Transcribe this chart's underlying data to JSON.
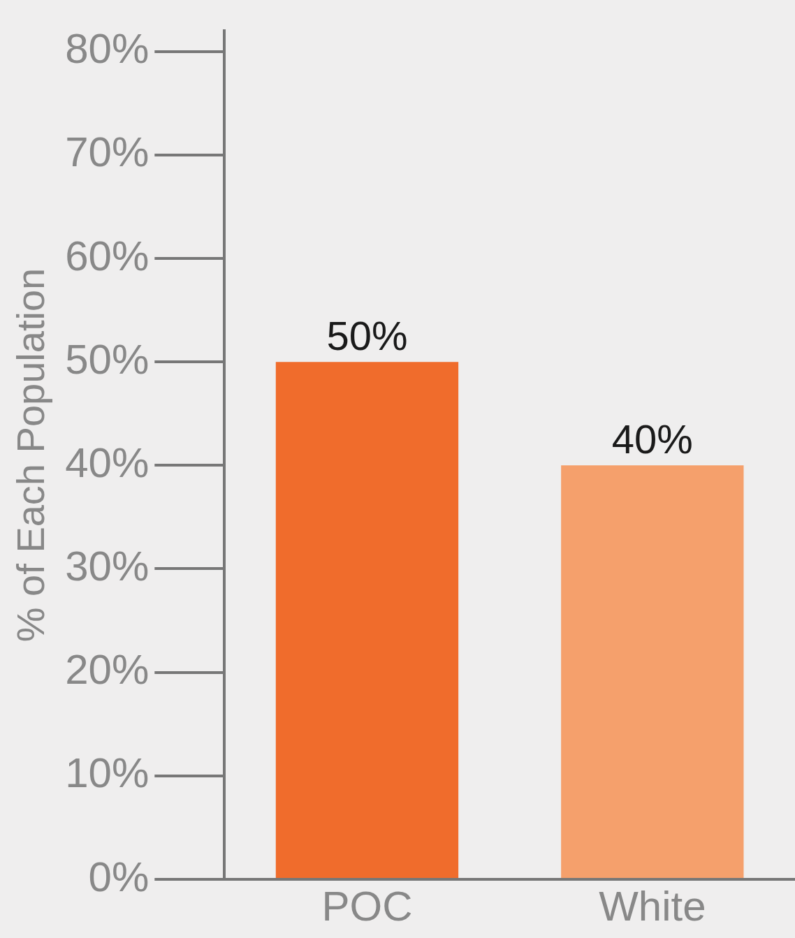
{
  "chart_data": {
    "type": "bar",
    "ylabel": "% of Each Population",
    "categories": [
      "POC",
      "White"
    ],
    "values": [
      50,
      40
    ],
    "colors": [
      "#f06c2c",
      "#f5a06c"
    ],
    "value_labels": [
      "50%",
      "40%"
    ],
    "ylim": [
      0,
      82
    ],
    "yticks": [
      {
        "value": 0,
        "label": "0%"
      },
      {
        "value": 10,
        "label": "10%"
      },
      {
        "value": 20,
        "label": "20%"
      },
      {
        "value": 30,
        "label": "30%"
      },
      {
        "value": 40,
        "label": "40%"
      },
      {
        "value": 50,
        "label": "50%"
      },
      {
        "value": 60,
        "label": "60%"
      },
      {
        "value": 70,
        "label": "70%"
      },
      {
        "value": 80,
        "label": "80%"
      }
    ],
    "grid": false,
    "legend": false
  }
}
